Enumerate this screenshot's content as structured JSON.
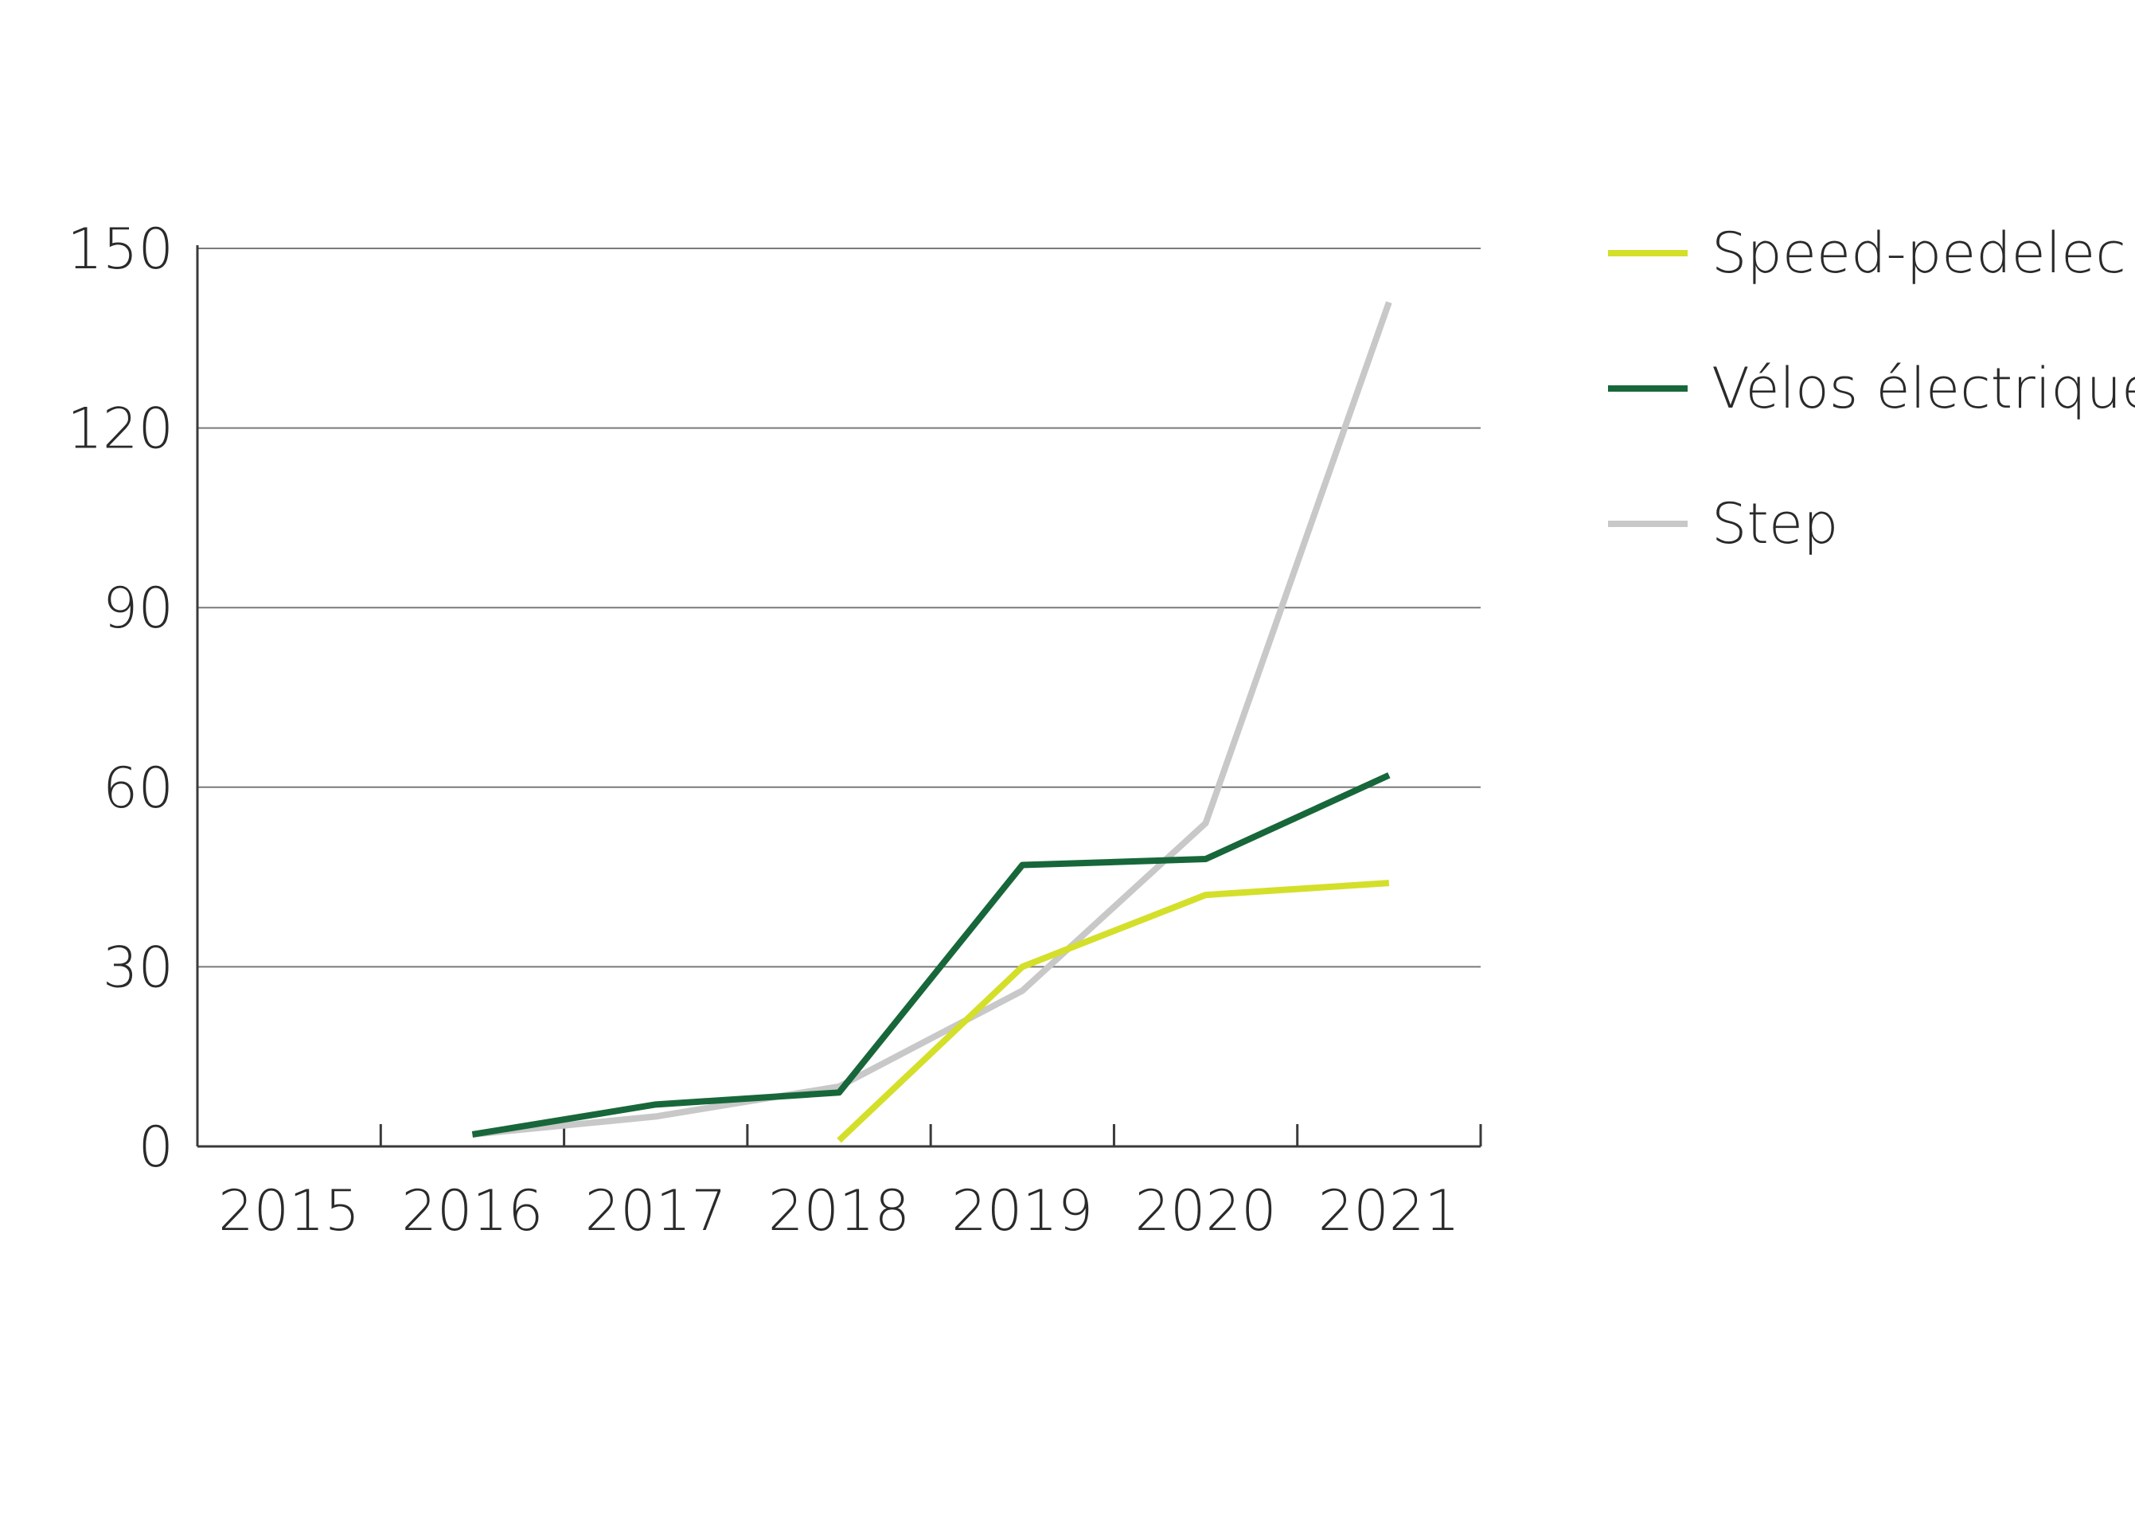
{
  "chart_data": {
    "type": "line",
    "title": "",
    "xlabel": "",
    "ylabel": "",
    "categories": [
      "2015",
      "2016",
      "2017",
      "2018",
      "2019",
      "2020",
      "2021"
    ],
    "ylim": [
      0,
      150
    ],
    "yticks": [
      0,
      30,
      60,
      90,
      120,
      150
    ],
    "grid": true,
    "legend_position": "right",
    "series": [
      {
        "name": "Speed-pedelec",
        "color": "#d4df2a",
        "x": [
          2018,
          2019,
          2020,
          2021
        ],
        "values": [
          1,
          30,
          42,
          44
        ]
      },
      {
        "name": "Vélos électriques",
        "color": "#17673a",
        "x": [
          2016,
          2017,
          2018,
          2019,
          2020,
          2021
        ],
        "values": [
          2,
          7,
          9,
          47,
          48,
          62
        ]
      },
      {
        "name": "Step",
        "color": "#c8c8c8",
        "x": [
          2016,
          2017,
          2018,
          2019,
          2020,
          2021
        ],
        "values": [
          2,
          5,
          10,
          26,
          54,
          141
        ]
      }
    ]
  }
}
